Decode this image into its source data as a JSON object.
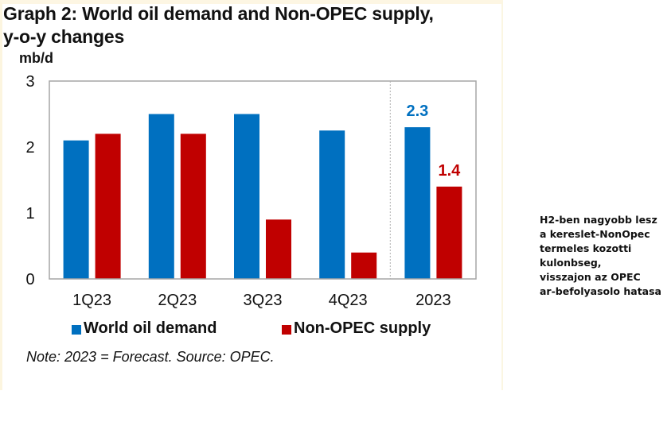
{
  "chart_data": {
    "type": "bar",
    "title": "Graph 2: World oil demand and Non-OPEC supply,",
    "title_line2": "y-o-y changes",
    "ylabel": "mb/d",
    "xlabel": "",
    "ylim": [
      0,
      3
    ],
    "yticks": [
      "0",
      "1",
      "2",
      "3"
    ],
    "categories": [
      "1Q23",
      "2Q23",
      "3Q23",
      "4Q23",
      "2023"
    ],
    "series": [
      {
        "name": "World oil demand",
        "color": "#0070c0",
        "values": [
          2.1,
          2.5,
          2.5,
          2.25,
          2.3
        ]
      },
      {
        "name": "Non-OPEC supply",
        "color": "#c00000",
        "values": [
          2.2,
          2.2,
          0.9,
          0.4,
          1.4
        ]
      }
    ],
    "data_labels": [
      {
        "category": "2023",
        "series": "World oil demand",
        "text": "2.3"
      },
      {
        "category": "2023",
        "series": "Non-OPEC supply",
        "text": "1.4"
      }
    ],
    "divider_before_category": "2023",
    "grid": false,
    "legend": "bottom",
    "note": "Note: 2023 = Forecast. Source: OPEC."
  },
  "annotation": {
    "lines": [
      "H2-ben nagyobb lesz",
      "a kereslet-NonOpec",
      "termeles kozotti",
      "kulonbseg,",
      "visszajon az OPEC",
      "ar-befolyasolo hatasa"
    ]
  }
}
